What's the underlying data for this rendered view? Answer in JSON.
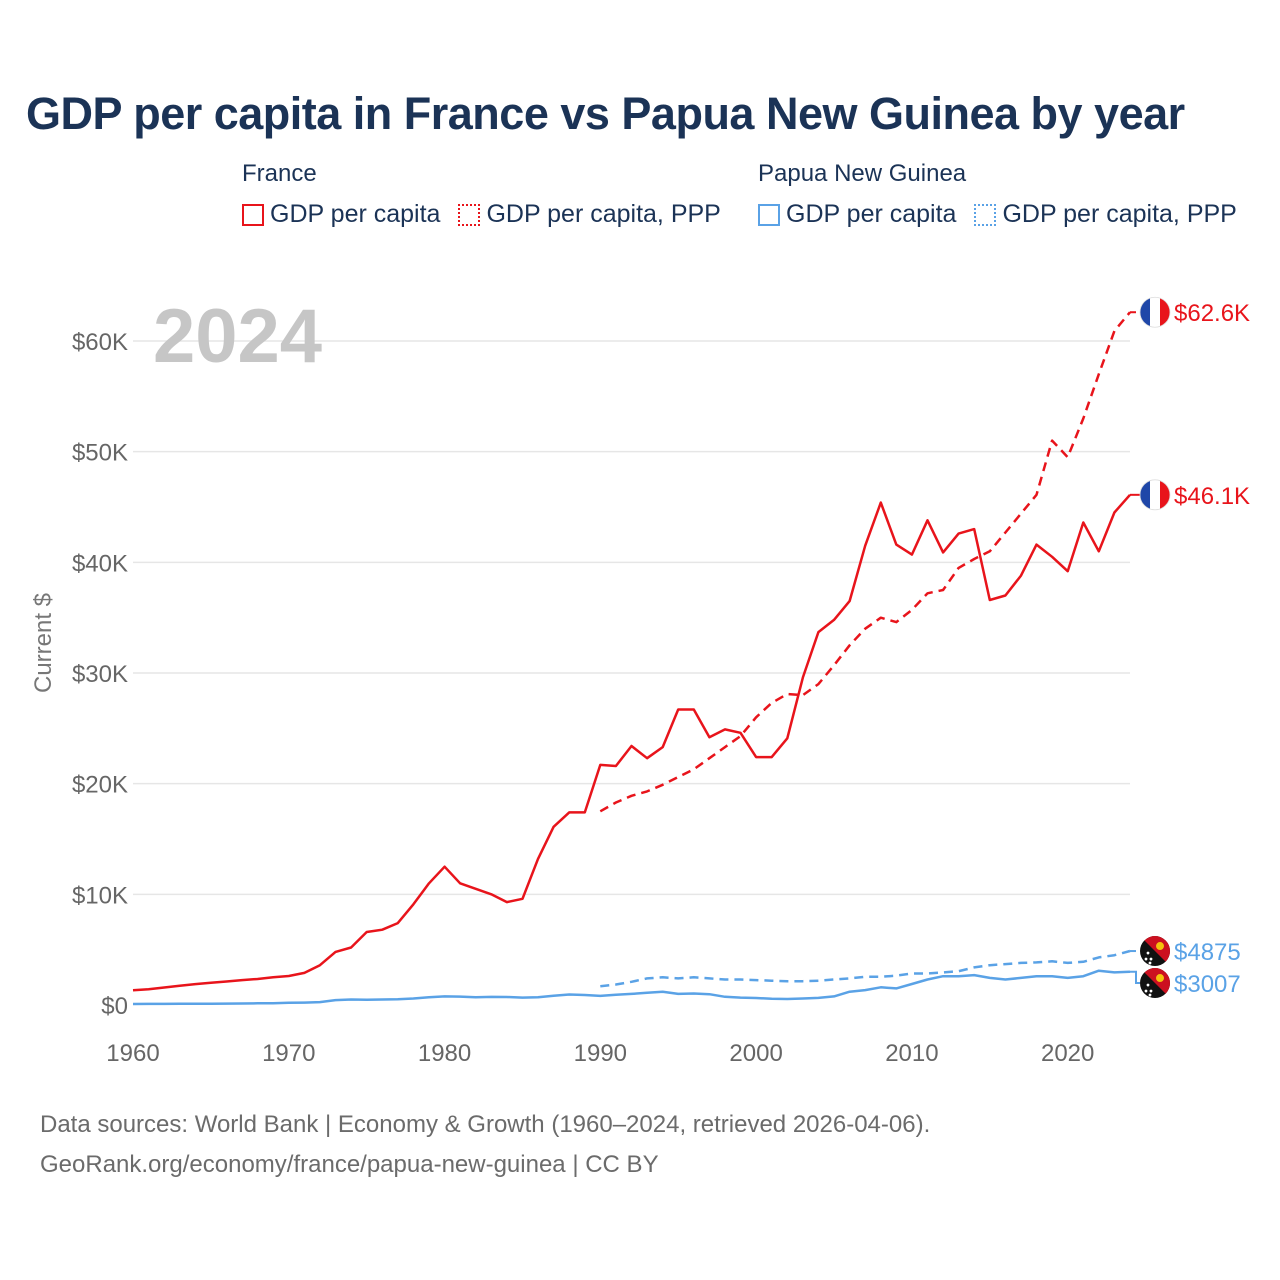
{
  "title": "GDP per capita in France vs Papua New Guinea by year",
  "legend": {
    "groups": [
      {
        "name": "France",
        "items": [
          {
            "label": "GDP per capita",
            "color": "#e8141b",
            "style": "solid"
          },
          {
            "label": "GDP per capita, PPP",
            "color": "#e8141b",
            "style": "dotted"
          }
        ]
      },
      {
        "name": "Papua New Guinea",
        "items": [
          {
            "label": "GDP per capita",
            "color": "#5aa2e6",
            "style": "solid"
          },
          {
            "label": "GDP per capita, PPP",
            "color": "#5aa2e6",
            "style": "dotted"
          }
        ]
      }
    ]
  },
  "chart_data": {
    "type": "line",
    "year_overlay": "2024",
    "ylabel": "Current $",
    "xlim": [
      1960,
      2024
    ],
    "ylim": [
      0,
      65000
    ],
    "x_ticks": [
      1960,
      1970,
      1980,
      1990,
      2000,
      2010,
      2020
    ],
    "x_tick_labels": [
      "1960",
      "1970",
      "1980",
      "1990",
      "2000",
      "2010",
      "2020"
    ],
    "y_ticks": [
      0,
      10000,
      20000,
      30000,
      40000,
      50000,
      60000
    ],
    "y_tick_labels": [
      "$0",
      "$10K",
      "$20K",
      "$30K",
      "$40K",
      "$50K",
      "$60K"
    ],
    "series": [
      {
        "name": "France GDP per capita",
        "color": "#e8141b",
        "dash": "solid",
        "start": 1960,
        "values": [
          1330,
          1420,
          1580,
          1740,
          1890,
          2010,
          2120,
          2250,
          2350,
          2510,
          2620,
          2900,
          3600,
          4800,
          5200,
          6600,
          6800,
          7400,
          9100,
          11000,
          12500,
          11000,
          10500,
          10000,
          9300,
          9600,
          13200,
          16100,
          17400,
          17400,
          21700,
          21600,
          23400,
          22300,
          23300,
          26700,
          26700,
          24200,
          24900,
          24600,
          22400,
          22400,
          24100,
          29600,
          33700,
          34800,
          36500,
          41500,
          45400,
          41600,
          40700,
          43800,
          40900,
          42600,
          43000,
          36600,
          37000,
          38800,
          41600,
          40500,
          39200,
          43600,
          41000,
          44500,
          46100
        ],
        "end_label": "$46.1K",
        "flag": "france"
      },
      {
        "name": "France GDP per capita, PPP",
        "color": "#e8141b",
        "dash": "dashed",
        "start": 1990,
        "values": [
          17500,
          18300,
          18900,
          19300,
          19900,
          20600,
          21300,
          22300,
          23300,
          24300,
          26000,
          27300,
          28100,
          28000,
          29000,
          30700,
          32500,
          34000,
          35000,
          34600,
          35700,
          37200,
          37500,
          39500,
          40300,
          41000,
          42700,
          44400,
          46100,
          51000,
          49500,
          53000,
          57000,
          60900,
          62600
        ],
        "end_label": "$62.6K",
        "flag": "france"
      },
      {
        "name": "Papua New Guinea GDP per capita",
        "color": "#5aa2e6",
        "dash": "solid",
        "start": 1960,
        "values": [
          90,
          95,
          100,
          105,
          110,
          120,
          130,
          140,
          150,
          165,
          200,
          220,
          260,
          440,
          500,
          480,
          500,
          520,
          590,
          700,
          780,
          760,
          700,
          730,
          720,
          670,
          700,
          830,
          950,
          900,
          820,
          920,
          1000,
          1100,
          1200,
          1000,
          1040,
          980,
          740,
          670,
          630,
          560,
          540,
          590,
          640,
          780,
          1200,
          1350,
          1600,
          1500,
          1900,
          2300,
          2600,
          2600,
          2700,
          2450,
          2300,
          2450,
          2600,
          2600,
          2450,
          2600,
          3100,
          2950,
          3007
        ],
        "end_label": "$3007",
        "flag": "png"
      },
      {
        "name": "Papua New Guinea GDP per capita, PPP",
        "color": "#5aa2e6",
        "dash": "dashed",
        "start": 1990,
        "values": [
          1700,
          1850,
          2100,
          2400,
          2500,
          2400,
          2500,
          2400,
          2300,
          2300,
          2250,
          2200,
          2150,
          2150,
          2200,
          2300,
          2400,
          2550,
          2550,
          2650,
          2850,
          2850,
          2950,
          3050,
          3400,
          3600,
          3700,
          3800,
          3850,
          3950,
          3800,
          3900,
          4300,
          4500,
          4875
        ],
        "end_label": "$4875",
        "flag": "png"
      }
    ]
  },
  "footer": {
    "line1": "Data sources: World Bank | Economy & Growth (1960–2024, retrieved 2026-04-06).",
    "line2": "GeoRank.org/economy/france/papua-new-guinea | CC BY"
  }
}
